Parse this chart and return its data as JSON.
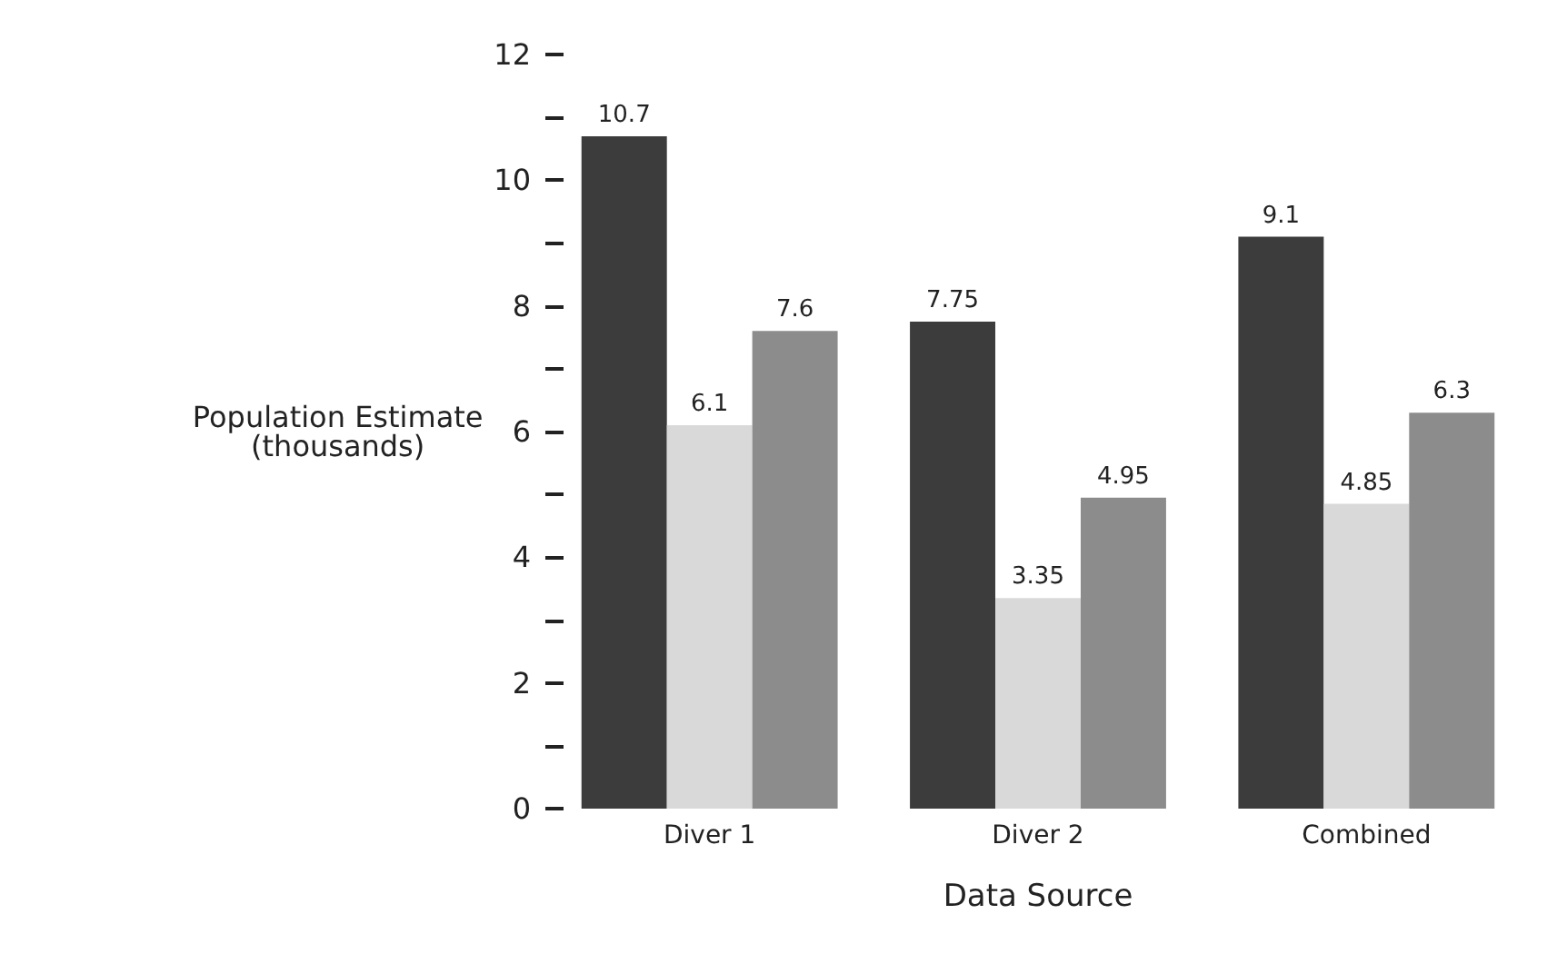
{
  "chart_data": {
    "type": "bar",
    "xlabel": "Data Source",
    "ylabel": "Population Estimate\n(thousands)",
    "categories": [
      "Diver 1",
      "Diver 2",
      "Combined"
    ],
    "series": [
      {
        "color": "#3c3c3c",
        "values": [
          10.7,
          7.75,
          9.1
        ]
      },
      {
        "color": "#d9d9d9",
        "values": [
          6.1,
          3.35,
          4.85
        ]
      },
      {
        "color": "#8c8c8c",
        "values": [
          7.6,
          4.95,
          6.3
        ]
      }
    ],
    "ylim": [
      0,
      12
    ],
    "yticks": [
      0,
      {
        "value": 1,
        "label": null
      },
      2,
      {
        "value": 3,
        "label": null
      },
      4,
      {
        "value": 5,
        "label": null
      },
      6,
      {
        "value": 7,
        "label": null
      },
      8,
      {
        "value": 9,
        "label": null
      },
      10,
      {
        "value": 11,
        "label": null
      },
      12
    ],
    "data_labels": true
  }
}
